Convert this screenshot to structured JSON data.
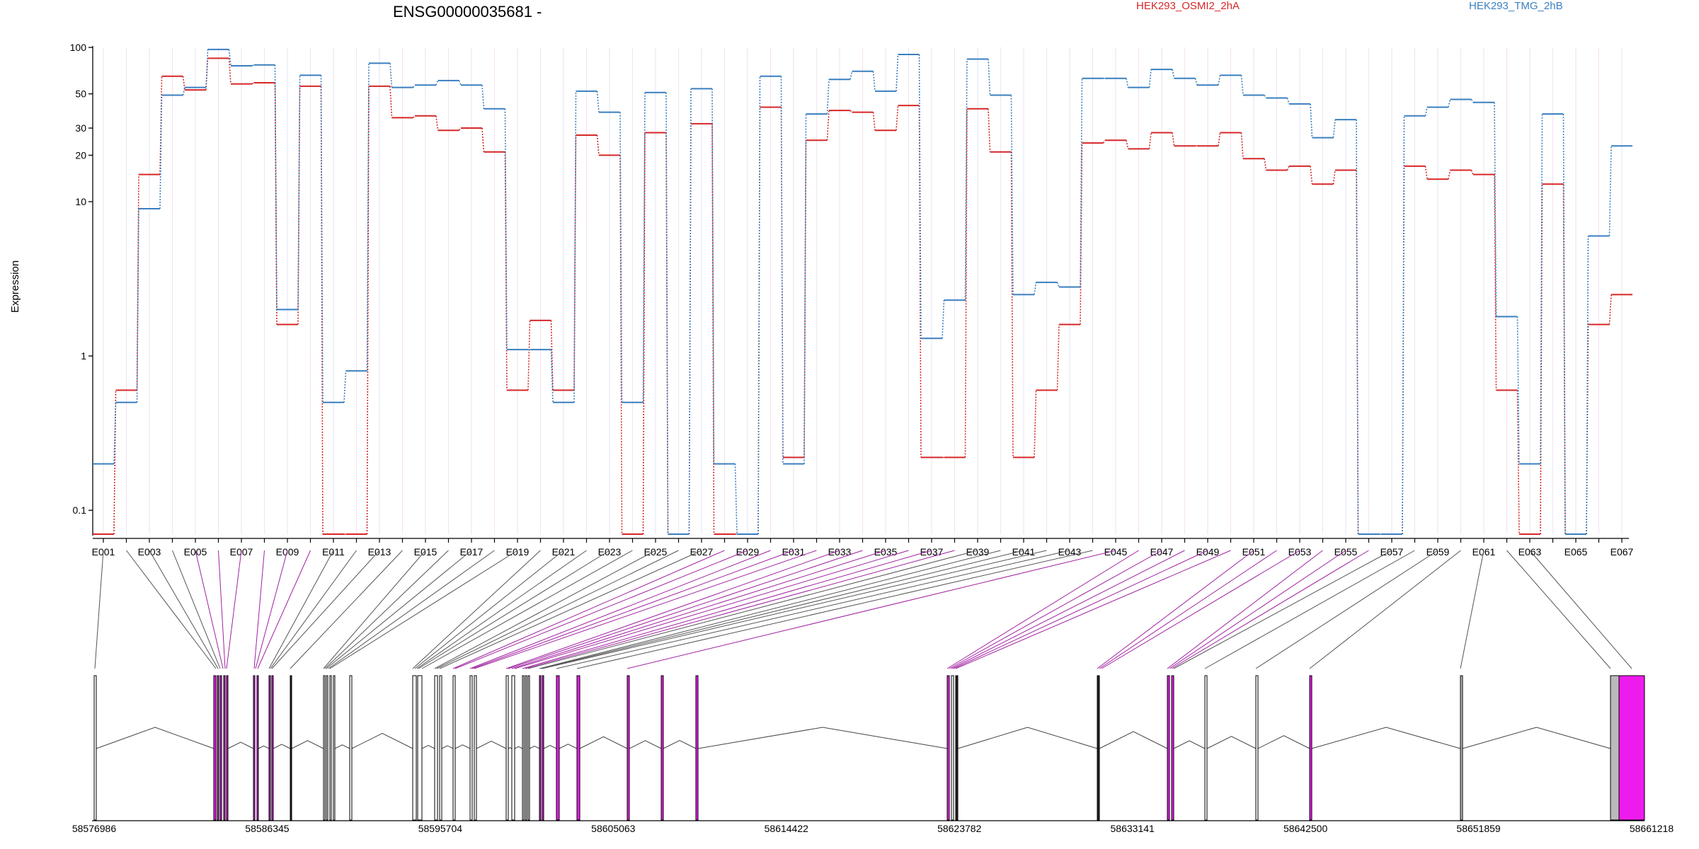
{
  "chart_data": {
    "type": "line",
    "title": "ENSG00000035681 -",
    "ylabel": "Expression",
    "y_scale": "log",
    "ylim": [
      0.07,
      100
    ],
    "y_ticks": [
      {
        "value": 0.1,
        "label": "0.1"
      },
      {
        "value": 1,
        "label": "1"
      },
      {
        "value": 10,
        "label": "10"
      },
      {
        "value": 20,
        "label": "20"
      },
      {
        "value": 30,
        "label": "30"
      },
      {
        "value": 50,
        "label": "50"
      },
      {
        "value": 100,
        "label": "100"
      }
    ],
    "categories": [
      "E001",
      "E002",
      "E003",
      "E004",
      "E005",
      "E006",
      "E007",
      "E008",
      "E009",
      "E010",
      "E011",
      "E012",
      "E013",
      "E014",
      "E015",
      "E016",
      "E017",
      "E018",
      "E019",
      "E020",
      "E021",
      "E022",
      "E023",
      "E024",
      "E025",
      "E026",
      "E027",
      "E028",
      "E029",
      "E030",
      "E031",
      "E032",
      "E033",
      "E034",
      "E035",
      "E036",
      "E037",
      "E038",
      "E039",
      "E040",
      "E041",
      "E042",
      "E043",
      "E044",
      "E045",
      "E046",
      "E047",
      "E048",
      "E049",
      "E050",
      "E051",
      "E052",
      "E053",
      "E054",
      "E055",
      "E056",
      "E057",
      "E058",
      "E059",
      "E060",
      "E061",
      "E062",
      "E063",
      "E064",
      "E065",
      "E066",
      "E067"
    ],
    "x_tick_labels": [
      "E001",
      "E003",
      "E005",
      "E007",
      "E009",
      "E011",
      "E013",
      "E015",
      "E017",
      "E019",
      "E021",
      "E023",
      "E025",
      "E027",
      "E029",
      "E031",
      "E033",
      "E035",
      "E037",
      "E039",
      "E041",
      "E043",
      "E045",
      "E047",
      "E049",
      "E051",
      "E053",
      "E055",
      "E057",
      "E059",
      "E061",
      "E063",
      "E065",
      "E067"
    ],
    "series": [
      {
        "name": "HEK293_OSMI2_2hA",
        "color": "#d62728",
        "values": [
          0.07,
          0.6,
          15,
          65,
          53,
          85,
          58,
          59,
          1.6,
          56,
          0.07,
          0.07,
          56,
          35,
          36,
          29,
          30,
          21,
          0.6,
          1.7,
          0.6,
          27,
          20,
          0.07,
          28,
          0.07,
          32,
          0.07,
          0.07,
          41,
          0.22,
          25,
          39,
          38,
          29,
          42,
          0.22,
          0.22,
          40,
          21,
          0.22,
          0.6,
          1.6,
          24,
          25,
          22,
          28,
          23,
          23,
          28,
          19,
          16,
          17,
          13,
          16,
          0.07,
          0.07,
          17,
          14,
          16,
          15,
          0.6,
          0.07,
          13,
          0.07,
          1.6,
          2.5
        ]
      },
      {
        "name": "HEK293_TMG_2hB",
        "color": "#3a7fbf",
        "values": [
          0.2,
          0.5,
          9,
          49,
          55,
          97,
          76,
          77,
          2,
          66,
          0.5,
          0.8,
          79,
          55,
          57,
          61,
          57,
          40,
          1.1,
          1.1,
          0.5,
          52,
          38,
          0.5,
          51,
          0.07,
          54,
          0.2,
          0.07,
          65,
          0.2,
          37,
          62,
          70,
          52,
          90,
          1.3,
          2.3,
          84,
          49,
          2.5,
          3,
          2.8,
          63,
          63,
          55,
          72,
          63,
          57,
          66,
          49,
          47,
          43,
          26,
          34,
          0.07,
          0.07,
          36,
          41,
          46,
          44,
          1.8,
          0.2,
          37,
          0.07,
          6,
          23
        ]
      }
    ],
    "legend_placement": "top, above plot",
    "genomic_axis_ticks": [
      "58576986",
      "58586345",
      "58595704",
      "58605063",
      "58614422",
      "58623782",
      "58633141",
      "58642500",
      "58651859",
      "58661218"
    ],
    "gene_structure_colors": {
      "constitutive": "#ffffff",
      "outline": "#000000",
      "highlight": "#ee1bee",
      "highlight_line": "#a020a0",
      "intron": "#444444",
      "grey_exon": "#bbbbbb"
    }
  }
}
